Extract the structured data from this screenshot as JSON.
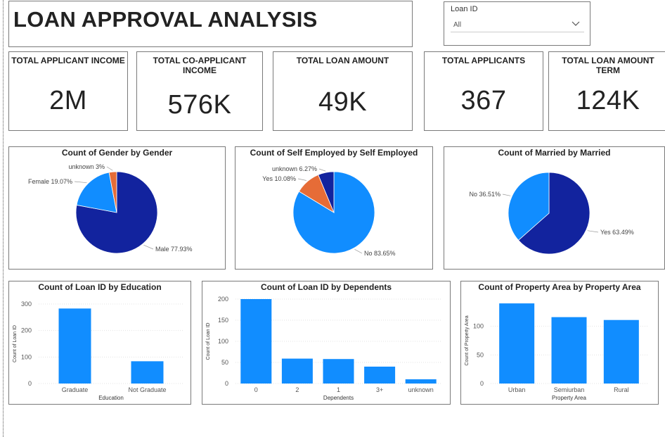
{
  "header": {
    "title": "LOAN APPROVAL ANALYSIS"
  },
  "slicer": {
    "label": "Loan ID",
    "value": "All",
    "icon": "chevron-down-icon"
  },
  "kpis": [
    {
      "title": "TOTAL APPLICANT INCOME",
      "value": "2M"
    },
    {
      "title": "TOTAL CO-APPLICANT INCOME",
      "value": "576K"
    },
    {
      "title": "TOTAL LOAN AMOUNT",
      "value": "49K"
    },
    {
      "title": "TOTAL APPLICANTS",
      "value": "367"
    },
    {
      "title": "TOTAL LOAN AMOUNT TERM",
      "value": "124K"
    }
  ],
  "colors": {
    "dark_blue": "#12239E",
    "light_blue": "#118DFF",
    "orange": "#E66C37"
  },
  "chart_data": [
    {
      "type": "pie",
      "title": "Count of Gender by Gender",
      "slices": [
        {
          "label": "Male 77.93%",
          "value": 77.93,
          "color": "#12239E"
        },
        {
          "label": "Female 19.07%",
          "value": 19.07,
          "color": "#118DFF"
        },
        {
          "label": "unknown 3%",
          "value": 3,
          "color": "#E66C37"
        }
      ]
    },
    {
      "type": "pie",
      "title": "Count of Self Employed by Self Employed",
      "slices": [
        {
          "label": "No 83.65%",
          "value": 83.65,
          "color": "#118DFF"
        },
        {
          "label": "Yes 10.08%",
          "value": 10.08,
          "color": "#E66C37"
        },
        {
          "label": "unknown 6.27%",
          "value": 6.27,
          "color": "#12239E"
        }
      ]
    },
    {
      "type": "pie",
      "title": "Count of Married by Married",
      "slices": [
        {
          "label": "Yes 63.49%",
          "value": 63.49,
          "color": "#12239E"
        },
        {
          "label": "No 36.51%",
          "value": 36.51,
          "color": "#118DFF"
        }
      ]
    },
    {
      "type": "bar",
      "title": "Count of Loan ID by Education",
      "categories": [
        "Graduate",
        "Not Graduate"
      ],
      "values": [
        283,
        84
      ],
      "xlabel": "Education",
      "ylabel": "Count of Loan ID",
      "ylim": [
        0,
        300
      ],
      "yticks": [
        0,
        100,
        200,
        300
      ],
      "grid": true
    },
    {
      "type": "bar",
      "title": "Count of Loan ID by Dependents",
      "categories": [
        "0",
        "2",
        "1",
        "3+",
        "unknown"
      ],
      "values": [
        200,
        59,
        58,
        40,
        10
      ],
      "xlabel": "Dependents",
      "ylabel": "Count of Loan ID",
      "ylim": [
        0,
        200
      ],
      "yticks": [
        0,
        50,
        100,
        150,
        200
      ],
      "grid": true
    },
    {
      "type": "bar",
      "title": "Count of Property Area by Property Area",
      "categories": [
        "Urban",
        "Semiurban",
        "Rural"
      ],
      "values": [
        140,
        116,
        111
      ],
      "xlabel": "Property Area",
      "ylabel": "Count of Property Area",
      "ylim": [
        0,
        150
      ],
      "yticks": [
        0,
        50,
        100
      ],
      "grid": true
    }
  ]
}
